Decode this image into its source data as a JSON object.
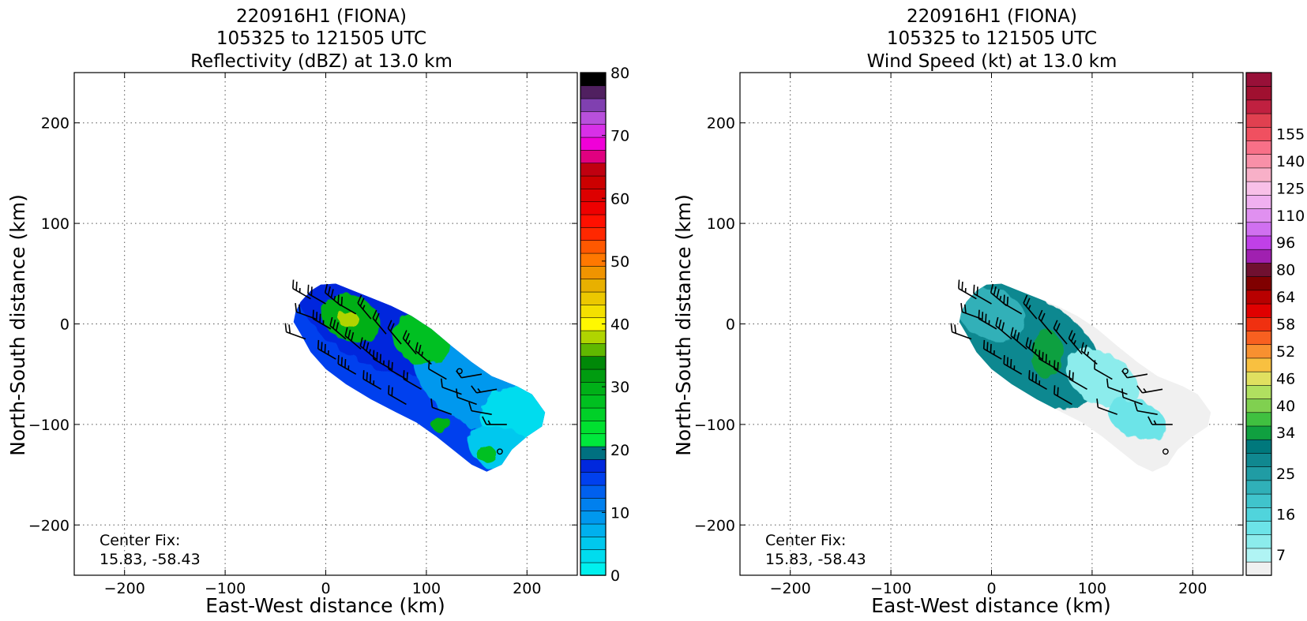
{
  "chart_data": [
    {
      "type": "heatmap",
      "title_lines": [
        "220916H1 (FIONA)",
        "105325 to 121505 UTC",
        "Reflectivity (dBZ) at 13.0 km"
      ],
      "xlabel": "East-West distance (km)",
      "ylabel": "North-South distance (km)",
      "xlim": [
        -250,
        250
      ],
      "ylim": [
        -250,
        250
      ],
      "x_ticks": [
        -200,
        -100,
        0,
        100,
        200
      ],
      "y_ticks": [
        -200,
        -100,
        0,
        100,
        200
      ],
      "x_tick_labels": [
        "−200",
        "−100",
        "0",
        "100",
        "200"
      ],
      "y_tick_labels": [
        "−200",
        "−100",
        "0",
        "100",
        "200"
      ],
      "grid": true,
      "annotation_lines": [
        "Center Fix:",
        "15.83, -58.43"
      ],
      "colorbar": {
        "min": 0,
        "max": 80,
        "ticks": [
          0,
          10,
          20,
          30,
          40,
          50,
          60,
          70,
          80
        ],
        "tick_labels": [
          "0",
          "10",
          "20",
          "30",
          "40",
          "50",
          "60",
          "70",
          "80"
        ],
        "colors": [
          "#00f0ee",
          "#00dcee",
          "#00c8ee",
          "#00b0ee",
          "#0098ee",
          "#0080ee",
          "#0060ee",
          "#0040ee",
          "#0028dd",
          "#007080",
          "#00e83c",
          "#00e030",
          "#00d028",
          "#00c020",
          "#00b018",
          "#009c10",
          "#008808",
          "#60b800",
          "#b0d400",
          "#fff800",
          "#f4e000",
          "#ecc800",
          "#e8b000",
          "#f09400",
          "#ff7800",
          "#ff5800",
          "#ff2800",
          "#ff1000",
          "#ee0000",
          "#dd0000",
          "#cc0000",
          "#c00010",
          "#e00080",
          "#f000d8",
          "#d830e8",
          "#b850dc",
          "#8040b0",
          "#502060",
          "#000000"
        ]
      },
      "field_peak_dbz": 35,
      "dominant_dbz": [
        8,
        15
      ]
    },
    {
      "type": "heatmap",
      "title_lines": [
        "220916H1 (FIONA)",
        "105325 to 121505 UTC",
        "Wind Speed (kt) at 13.0 km"
      ],
      "xlabel": "East-West distance (km)",
      "ylabel": "North-South distance (km)",
      "xlim": [
        -250,
        250
      ],
      "ylim": [
        -250,
        250
      ],
      "x_ticks": [
        -200,
        -100,
        0,
        100,
        200
      ],
      "y_ticks": [
        -200,
        -100,
        0,
        100,
        200
      ],
      "x_tick_labels": [
        "−200",
        "−100",
        "0",
        "100",
        "200"
      ],
      "y_tick_labels": [
        "−200",
        "−100",
        "0",
        "100",
        "200"
      ],
      "grid": true,
      "annotation_lines": [
        "Center Fix:",
        "15.83, -58.43"
      ],
      "colorbar": {
        "labels": [
          "7",
          "16",
          "25",
          "34",
          "40",
          "46",
          "52",
          "58",
          "64",
          "80",
          "96",
          "110",
          "125",
          "140",
          "155"
        ],
        "label_bins": [
          1,
          4,
          7,
          10,
          12,
          14,
          16,
          18,
          20,
          22,
          24,
          26,
          28,
          30,
          32
        ],
        "colors": [
          "#f0f0f0",
          "#b0f4f4",
          "#8cecec",
          "#6ce4e8",
          "#50d4dc",
          "#40c4cc",
          "#30b0b8",
          "#209ca4",
          "#108890",
          "#00787c",
          "#10a040",
          "#40c040",
          "#80d050",
          "#b0e060",
          "#e0e060",
          "#f8c040",
          "#f89030",
          "#f86020",
          "#f03010",
          "#e00000",
          "#b80000",
          "#800000",
          "#701030",
          "#a020b0",
          "#c040e8",
          "#d070f0",
          "#e090f0",
          "#f0b0f0",
          "#f8c0e8",
          "#f8b0c8",
          "#f890a8",
          "#f87088",
          "#f05060",
          "#e04050",
          "#c02040",
          "#a01030",
          "#981038"
        ]
      },
      "field_peak_kt": 30,
      "dominant_kt": [
        7,
        25
      ]
    }
  ]
}
